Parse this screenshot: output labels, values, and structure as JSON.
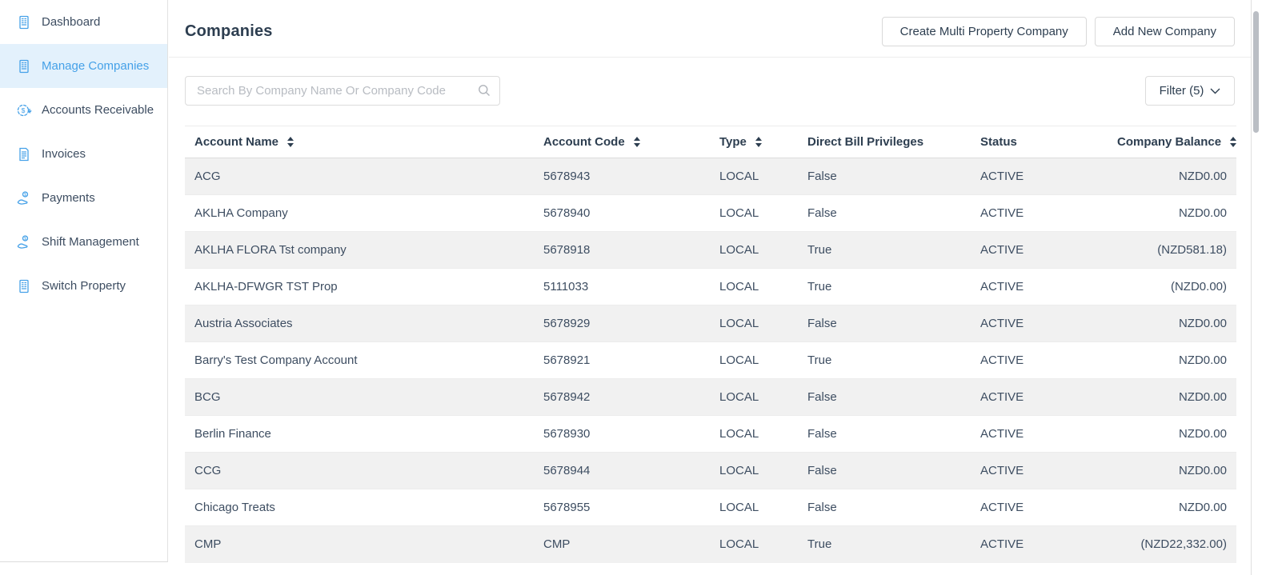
{
  "sidebar": {
    "items": [
      {
        "label": "Dashboard",
        "icon": "building-icon",
        "selected": false
      },
      {
        "label": "Manage Companies",
        "icon": "building-icon",
        "selected": true
      },
      {
        "label": "Accounts Receivable",
        "icon": "dollar-refund-icon",
        "selected": false
      },
      {
        "label": "Invoices",
        "icon": "invoice-icon",
        "selected": false
      },
      {
        "label": "Payments",
        "icon": "hand-coin-icon",
        "selected": false
      },
      {
        "label": "Shift Management",
        "icon": "hand-coin-icon",
        "selected": false
      },
      {
        "label": "Switch Property",
        "icon": "building-icon",
        "selected": false
      }
    ]
  },
  "header": {
    "title": "Companies",
    "create_multi_label": "Create Multi Property Company",
    "add_new_label": "Add New Company"
  },
  "toolbar": {
    "search_placeholder": "Search By Company Name Or Company Code",
    "filter_label": "Filter (5)"
  },
  "table": {
    "columns": [
      {
        "label": "Account Name",
        "sortable": true
      },
      {
        "label": "Account Code",
        "sortable": true
      },
      {
        "label": "Type",
        "sortable": true
      },
      {
        "label": "Direct Bill Privileges",
        "sortable": false
      },
      {
        "label": "Status",
        "sortable": false
      },
      {
        "label": "Company Balance",
        "sortable": true
      }
    ],
    "rows": [
      [
        "ACG",
        "5678943",
        "LOCAL",
        "False",
        "ACTIVE",
        "NZD0.00"
      ],
      [
        "AKLHA Company",
        "5678940",
        "LOCAL",
        "False",
        "ACTIVE",
        "NZD0.00"
      ],
      [
        "AKLHA FLORA Tst company",
        "5678918",
        "LOCAL",
        "True",
        "ACTIVE",
        "(NZD581.18)"
      ],
      [
        "AKLHA-DFWGR TST Prop",
        "5111033",
        "LOCAL",
        "True",
        "ACTIVE",
        "(NZD0.00)"
      ],
      [
        "Austria Associates",
        "5678929",
        "LOCAL",
        "False",
        "ACTIVE",
        "NZD0.00"
      ],
      [
        "Barry's Test Company Account",
        "5678921",
        "LOCAL",
        "True",
        "ACTIVE",
        "NZD0.00"
      ],
      [
        "BCG",
        "5678942",
        "LOCAL",
        "False",
        "ACTIVE",
        "NZD0.00"
      ],
      [
        "Berlin Finance",
        "5678930",
        "LOCAL",
        "False",
        "ACTIVE",
        "NZD0.00"
      ],
      [
        "CCG",
        "5678944",
        "LOCAL",
        "False",
        "ACTIVE",
        "NZD0.00"
      ],
      [
        "Chicago Treats",
        "5678955",
        "LOCAL",
        "False",
        "ACTIVE",
        "NZD0.00"
      ],
      [
        "CMP",
        "CMP",
        "LOCAL",
        "True",
        "ACTIVE",
        "(NZD22,332.00)"
      ]
    ]
  },
  "colors": {
    "accent_blue": "#45a1e8",
    "selected_bg": "#e3f1fc",
    "heading_navy": "#2d3e50",
    "row_stripe": "#f1f1f1"
  }
}
